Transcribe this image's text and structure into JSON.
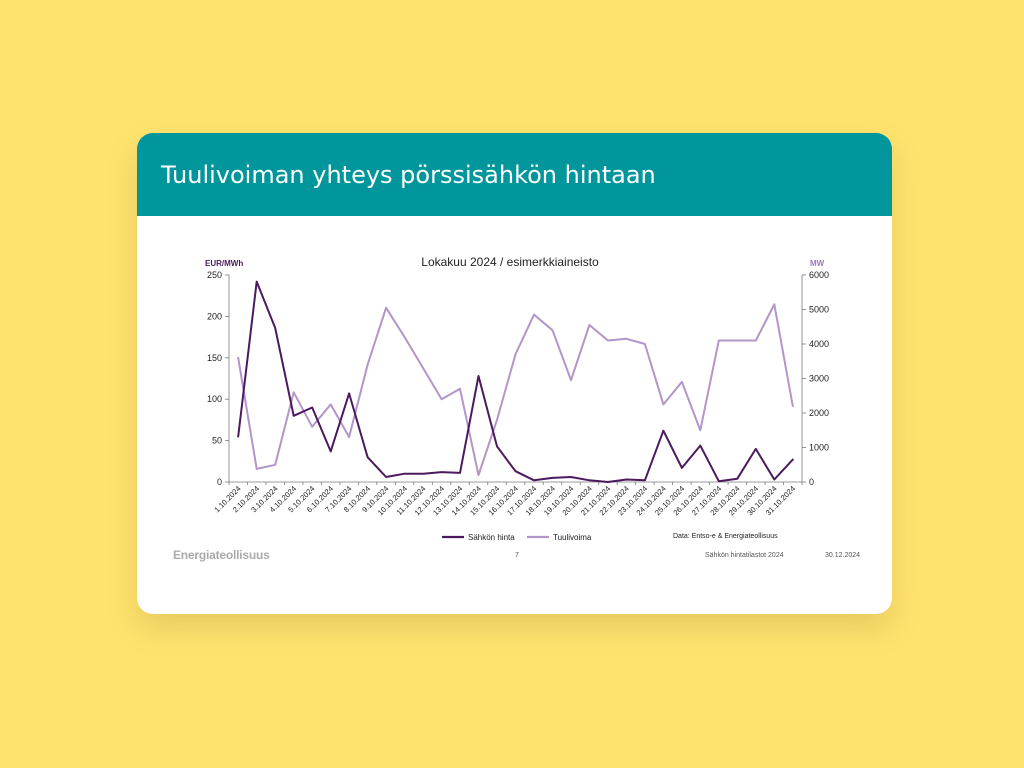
{
  "slide": {
    "title": "Tuulivoiman yhteys pörssisähkön hintaan",
    "logo": "Energiateollisuus",
    "page_number": "7",
    "report_name": "Sähkön hintatilastot 2024",
    "date": "30.12.2024"
  },
  "chart_data": {
    "type": "line",
    "title": "Lokakuu 2024 / esimerkkiaineisto",
    "ylabel_left": "EUR/MWh",
    "ylabel_right": "MW",
    "ylim_left": [
      0,
      250
    ],
    "ylim_right": [
      0,
      6000
    ],
    "yticks_left": [
      "0",
      "50",
      "100",
      "150",
      "200",
      "250"
    ],
    "yticks_right": [
      "0",
      "1000",
      "2000",
      "3000",
      "4000",
      "5000",
      "6000"
    ],
    "categories": [
      "1.10.2024",
      "2.10.2024",
      "3.10.2024",
      "4.10.2024",
      "5.10.2024",
      "6.10.2024",
      "7.10.2024",
      "8.10.2024",
      "9.10.2024",
      "10.10.2024",
      "11.10.2024",
      "12.10.2024",
      "13.10.2024",
      "14.10.2024",
      "15.10.2024",
      "16.10.2024",
      "17.10.2024",
      "18.10.2024",
      "19.10.2024",
      "20.10.2024",
      "21.10.2024",
      "22.10.2024",
      "23.10.2024",
      "24.10.2024",
      "25.10.2024",
      "26.10.2024",
      "27.10.2024",
      "28.10.2024",
      "29.10.2024",
      "30.10.2024",
      "31.10.2024"
    ],
    "series": [
      {
        "name": "Sähkön hinta",
        "axis": "left",
        "color": "#4b1a5e",
        "values": [
          55,
          242,
          186,
          80,
          90,
          37,
          107,
          30,
          6,
          10,
          10,
          12,
          11,
          128,
          43,
          13,
          2,
          5,
          6,
          2,
          0,
          3,
          2,
          62,
          17,
          44,
          1,
          4,
          40,
          3,
          27
        ]
      },
      {
        "name": "Tuulivoima",
        "axis": "right",
        "color": "#b295c9",
        "values": [
          3600,
          380,
          500,
          2600,
          1600,
          2250,
          1300,
          3400,
          5050,
          4200,
          3300,
          2400,
          2700,
          200,
          1800,
          3700,
          4850,
          4400,
          2950,
          4550,
          4100,
          4150,
          4000,
          2250,
          2900,
          1500,
          4100,
          4100,
          4100,
          5150,
          2200
        ]
      }
    ],
    "legend": "bottom",
    "source_note": "Data: Entso-e & Energiateollisuus",
    "grid": false
  }
}
